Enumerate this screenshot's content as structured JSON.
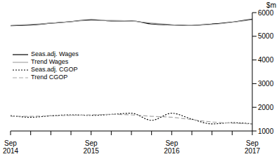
{
  "chart_data": {
    "type": "line",
    "y_label": "$m",
    "categories": [
      "Sep 2014",
      null,
      null,
      null,
      "Sep 2015",
      null,
      null,
      null,
      "Sep 2016",
      null,
      null,
      null,
      "Sep 2017"
    ],
    "series": [
      {
        "name": "Seas.adj. Wages",
        "color": "#000000",
        "line_style": "solid",
        "values": [
          5450,
          5480,
          5550,
          5620,
          5700,
          5650,
          5650,
          5520,
          5480,
          5460,
          5520,
          5600,
          5720
        ]
      },
      {
        "name": "Trend Wages",
        "color": "#a6a6a6",
        "line_style": "solid",
        "values": [
          5460,
          5500,
          5560,
          5620,
          5670,
          5670,
          5640,
          5560,
          5490,
          5460,
          5500,
          5590,
          5700
        ]
      },
      {
        "name": "Seas.adj. CGOP",
        "color": "#000000",
        "line_style": "dotted",
        "values": [
          1650,
          1580,
          1640,
          1680,
          1660,
          1700,
          1750,
          1450,
          1750,
          1500,
          1300,
          1350,
          1300
        ]
      },
      {
        "name": "Trend CGOP",
        "color": "#a6a6a6",
        "line_style": "dashed",
        "values": [
          1620,
          1620,
          1640,
          1660,
          1680,
          1700,
          1680,
          1620,
          1580,
          1480,
          1380,
          1330,
          1300
        ]
      }
    ],
    "ylim": [
      1000,
      6000
    ],
    "yticks": [
      1000,
      2000,
      3000,
      4000,
      5000,
      6000
    ],
    "grid": false,
    "legend": "left"
  }
}
